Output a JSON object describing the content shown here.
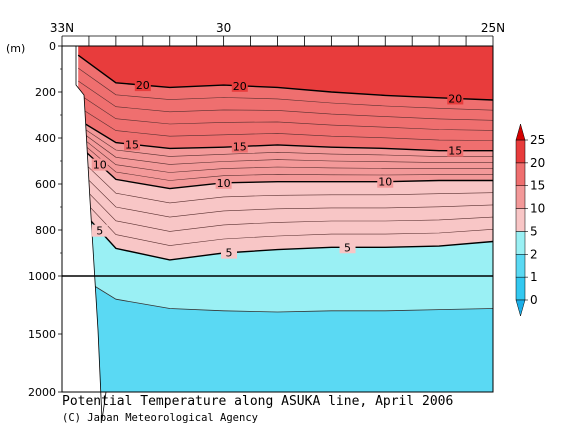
{
  "chart_data": {
    "type": "heatmap",
    "title": "Potential Temperature along ASUKA line, April 2006",
    "credit": "(C) Japan Meteorological Agency",
    "x_tick_labels": [
      "33N",
      "30",
      "25N"
    ],
    "x_ticks_lat": [
      33,
      32.5,
      32,
      31.5,
      31,
      30.5,
      30,
      29.5,
      29,
      28.5,
      28,
      27.5,
      27,
      26.5,
      26,
      25.5,
      25
    ],
    "x_range": [
      33,
      25
    ],
    "y_unit_label": "(m)",
    "y_upper_ticks": [
      0,
      200,
      400,
      600,
      800,
      1000
    ],
    "y_lower_ticks": [
      1000,
      1500,
      2000
    ],
    "y_upper_range": [
      0,
      1000
    ],
    "y_lower_range": [
      1000,
      2000
    ],
    "colorbar": {
      "labels": [
        "25",
        "20",
        "15",
        "10",
        "5",
        "2",
        "1",
        "0"
      ],
      "levels": [
        0,
        1,
        2,
        5,
        10,
        15,
        20,
        25
      ],
      "colors": [
        "#33c8f0",
        "#5ad9f3",
        "#9af0f4",
        "#f8c6c6",
        "#f39999",
        "#ef6f6f",
        "#e83c3c"
      ],
      "top_arrow": "#d40000",
      "bottom_arrow": "#1aaee8"
    },
    "isotherm_labels": [
      {
        "text": "20",
        "value": 20
      },
      {
        "text": "20",
        "value": 20
      },
      {
        "text": "20",
        "value": 20
      },
      {
        "text": "15",
        "value": 15
      },
      {
        "text": "15",
        "value": 15
      },
      {
        "text": "15",
        "value": 15
      },
      {
        "text": "10",
        "value": 10
      },
      {
        "text": "10",
        "value": 10
      },
      {
        "text": "10",
        "value": 10
      },
      {
        "text": "5",
        "value": 5
      },
      {
        "text": "5",
        "value": 5
      },
      {
        "text": "5",
        "value": 5
      }
    ],
    "isotherm_depths": {
      "lat": [
        32.7,
        32,
        31,
        30,
        29,
        28,
        27,
        26,
        25
      ],
      "20": [
        40,
        160,
        180,
        170,
        180,
        200,
        215,
        225,
        235
      ],
      "15": [
        320,
        420,
        445,
        440,
        430,
        440,
        445,
        455,
        455
      ],
      "10": [
        430,
        580,
        620,
        595,
        590,
        590,
        590,
        585,
        585
      ],
      "5": [
        700,
        880,
        930,
        900,
        885,
        875,
        875,
        870,
        850
      ],
      "2": [
        1000,
        1200,
        1280,
        1300,
        1310,
        1300,
        1300,
        1290,
        1280
      ]
    }
  }
}
